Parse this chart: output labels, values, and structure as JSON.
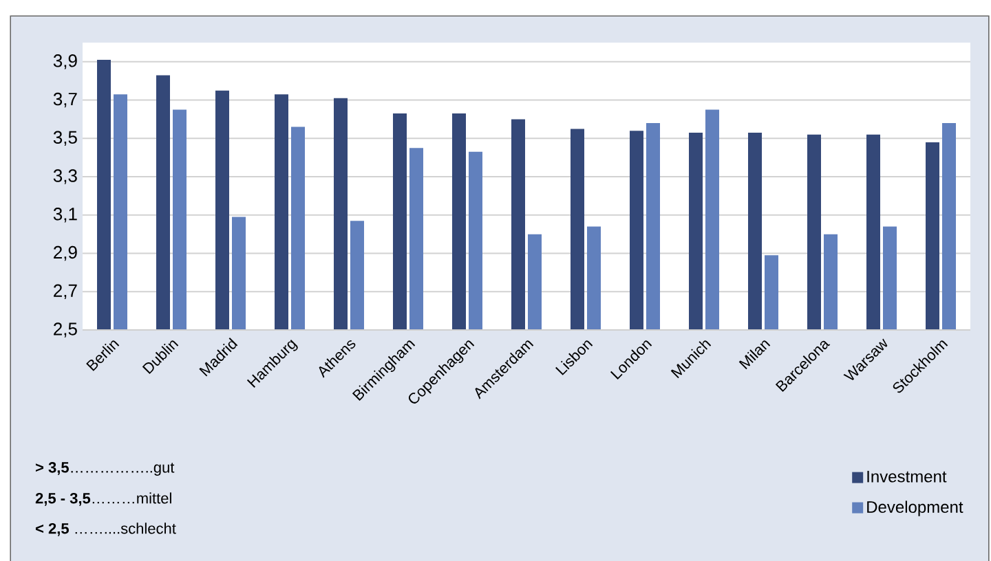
{
  "chart_data": {
    "type": "bar",
    "categories": [
      "Berlin",
      "Dublin",
      "Madrid",
      "Hamburg",
      "Athens",
      "Birmingham",
      "Copenhagen",
      "Amsterdam",
      "Lisbon",
      "London",
      "Munich",
      "Milan",
      "Barcelona",
      "Warsaw",
      "Stockholm"
    ],
    "series": [
      {
        "name": "Investment",
        "color": "#344878",
        "values": [
          3.91,
          3.83,
          3.75,
          3.73,
          3.71,
          3.63,
          3.63,
          3.6,
          3.55,
          3.54,
          3.53,
          3.53,
          3.52,
          3.52,
          3.48
        ]
      },
      {
        "name": "Development",
        "color": "#6180bd",
        "values": [
          3.73,
          3.65,
          3.09,
          3.56,
          3.07,
          3.45,
          3.43,
          3.0,
          3.04,
          3.58,
          3.65,
          2.89,
          3.0,
          3.04,
          3.58
        ]
      }
    ],
    "ylim": [
      2.5,
      4.0
    ],
    "yticks": [
      {
        "value": 2.5,
        "label": "2,5"
      },
      {
        "value": 2.7,
        "label": "2,7"
      },
      {
        "value": 2.9,
        "label": "2,9"
      },
      {
        "value": 3.1,
        "label": "3,1"
      },
      {
        "value": 3.3,
        "label": "3,3"
      },
      {
        "value": 3.5,
        "label": "3,5"
      },
      {
        "value": 3.7,
        "label": "3,7"
      },
      {
        "value": 3.9,
        "label": "3,9"
      }
    ],
    "grid": "y",
    "legend": "bottom right",
    "annotations": [
      "**> 3,5**……………..gut",
      "**2,5 - 3,5**………mittel",
      "**< 2,5** ……....schlecht"
    ]
  }
}
